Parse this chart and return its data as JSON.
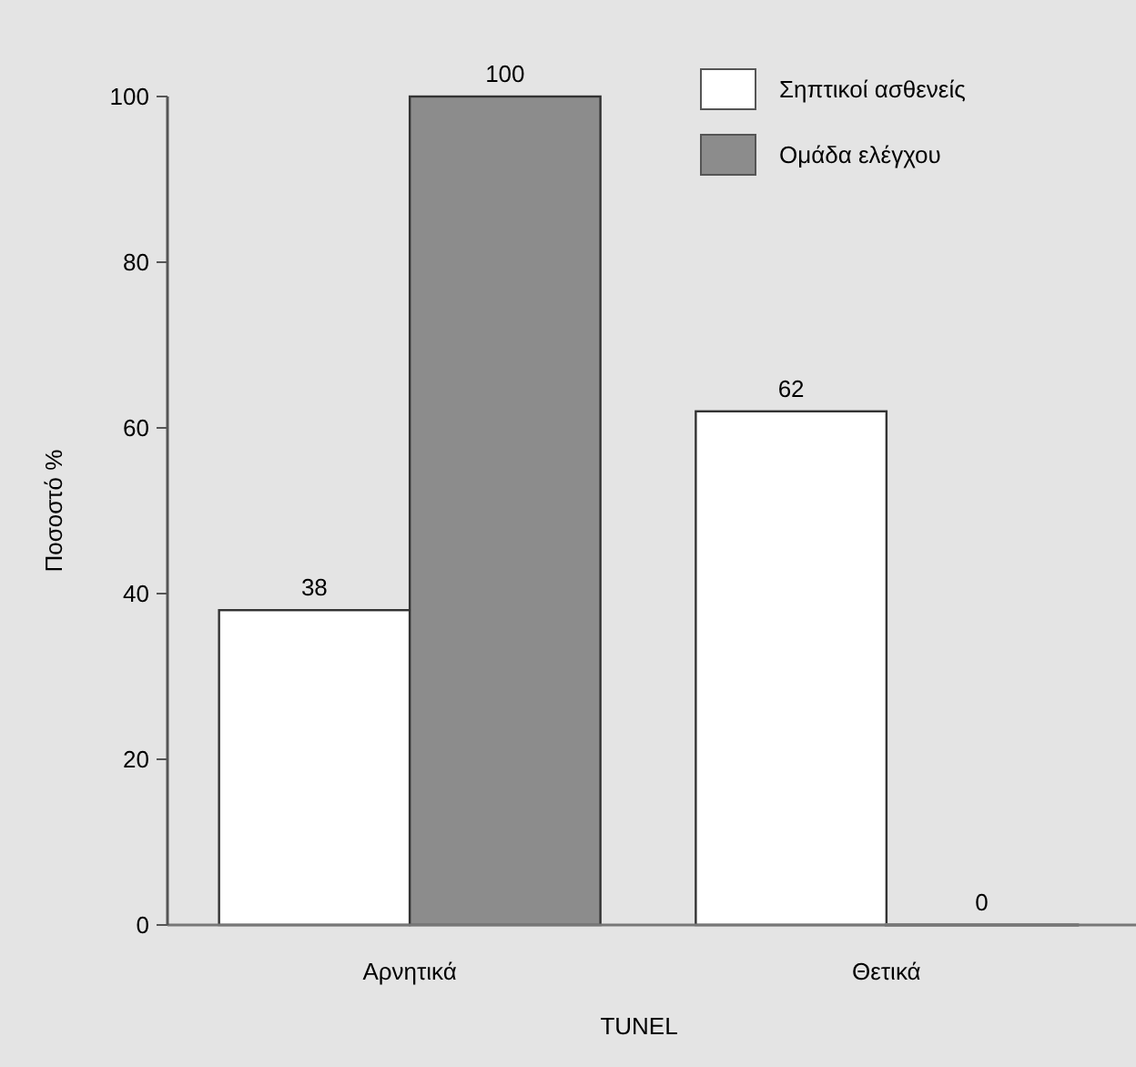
{
  "chart_data": {
    "type": "bar",
    "xlabel": "TUNEL",
    "ylabel": "Ποσοστό %",
    "categories": [
      "Αρνητικά",
      "Θετικά"
    ],
    "series": [
      {
        "name": "Σηπτικοί ασθενείς",
        "color": "#ffffff",
        "values": [
          38,
          62
        ]
      },
      {
        "name": "Ομάδα ελέγχου",
        "color": "#8c8c8c",
        "values": [
          100,
          0
        ]
      }
    ],
    "ylim": [
      0,
      100
    ],
    "yticks": [
      0,
      20,
      40,
      60,
      80,
      100
    ],
    "data_labels": true,
    "legend": "top right",
    "grid": false
  }
}
